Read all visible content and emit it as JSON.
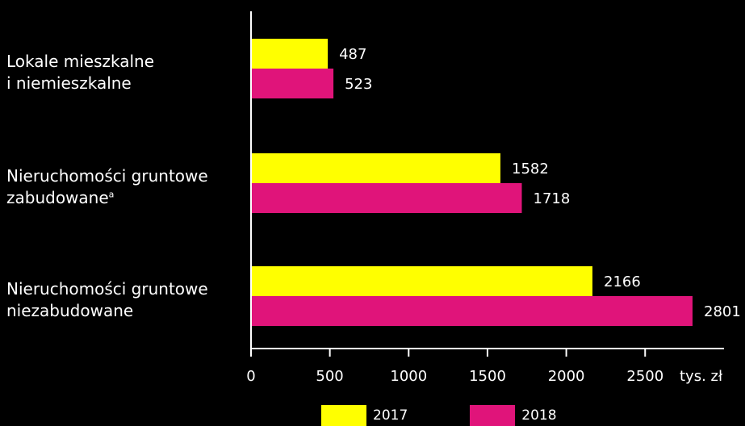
{
  "chart_data": {
    "type": "bar",
    "orientation": "horizontal",
    "categories": [
      {
        "line1": "Lokale mieszkalne",
        "line2": "i niemieszkalne",
        "footnote": ""
      },
      {
        "line1": "Nieruchomości gruntowe",
        "line2": "zabudowane",
        "footnote": "a"
      },
      {
        "line1": "Nieruchomości gruntowe",
        "line2": "niezabudowane",
        "footnote": ""
      }
    ],
    "series": [
      {
        "name": "2017",
        "color": "#ffff00",
        "values": [
          487,
          1582,
          2166
        ]
      },
      {
        "name": "2018",
        "color": "#e0147a",
        "values": [
          523,
          1718,
          2801
        ]
      }
    ],
    "xlim": [
      0,
      2900
    ],
    "xticks": [
      "0",
      "500",
      "1000",
      "1500",
      "2000",
      "2500"
    ],
    "xunit": "tys. zł",
    "legend_position": "bottom",
    "grid": false
  }
}
